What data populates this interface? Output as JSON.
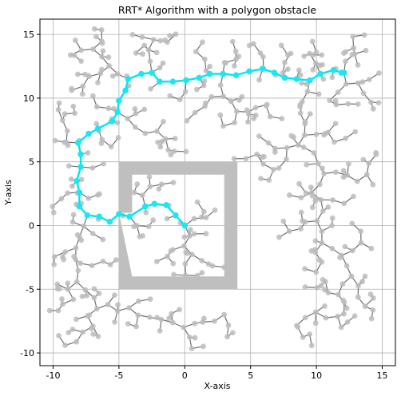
{
  "chart_data": {
    "type": "scatter",
    "title": "RRT* Algorithm with a polygon obstacle",
    "xlabel": "X-axis",
    "ylabel": "Y-axis",
    "xlim": [
      -11,
      16
    ],
    "ylim": [
      -11,
      16.2
    ],
    "xticks": [
      -10,
      -5,
      0,
      5,
      10,
      15
    ],
    "yticks": [
      -10,
      -5,
      0,
      5,
      10,
      15
    ],
    "grid": true,
    "obstacle_color": "#bfbfbf",
    "tree_color": "#6f6f6f",
    "tree_node_color": "#bdbdbd",
    "path_color": "#00e5ee",
    "obstacle": {
      "outer": [
        [
          -5,
          -5
        ],
        [
          4,
          -5
        ],
        [
          4,
          5
        ],
        [
          -5,
          5
        ]
      ],
      "inner": [
        [
          -4,
          -4
        ],
        [
          3,
          -4
        ],
        [
          3,
          4
        ],
        [
          -4,
          4
        ],
        [
          -4,
          1
        ],
        [
          -5,
          1
        ]
      ]
    },
    "path": [
      [
        0,
        0
      ],
      [
        -0.7,
        0.8
      ],
      [
        -1.4,
        1.6
      ],
      [
        -2.3,
        1.7
      ],
      [
        -3.0,
        1.5
      ],
      [
        -4.2,
        0.7
      ],
      [
        -5.0,
        0.9
      ],
      [
        -5.7,
        0.3
      ],
      [
        -6.5,
        0.7
      ],
      [
        -7.4,
        0.8
      ],
      [
        -8.0,
        1.5
      ],
      [
        -8.0,
        2.6
      ],
      [
        -8.2,
        3.5
      ],
      [
        -7.9,
        4.6
      ],
      [
        -7.9,
        5.6
      ],
      [
        -8.1,
        6.5
      ],
      [
        -7.3,
        7.2
      ],
      [
        -6.6,
        7.6
      ],
      [
        -5.5,
        8.2
      ],
      [
        -5.1,
        8.9
      ],
      [
        -5.0,
        9.8
      ],
      [
        -4.5,
        10.6
      ],
      [
        -4.3,
        11.5
      ],
      [
        -3.3,
        11.9
      ],
      [
        -2.5,
        12.0
      ],
      [
        -1.9,
        11.3
      ],
      [
        -0.9,
        11.3
      ],
      [
        0.1,
        11.4
      ],
      [
        1.1,
        11.6
      ],
      [
        1.9,
        11.9
      ],
      [
        2.9,
        11.9
      ],
      [
        3.9,
        11.8
      ],
      [
        4.9,
        12.1
      ],
      [
        5.9,
        12.3
      ],
      [
        6.8,
        12.0
      ],
      [
        7.6,
        11.6
      ],
      [
        8.5,
        11.5
      ],
      [
        9.5,
        11.4
      ],
      [
        10.3,
        11.9
      ],
      [
        11.3,
        12.2
      ],
      [
        11.9,
        12.0
      ],
      [
        12.1,
        12.0
      ]
    ],
    "tree_seed": 42,
    "tree_node_count": 520
  }
}
